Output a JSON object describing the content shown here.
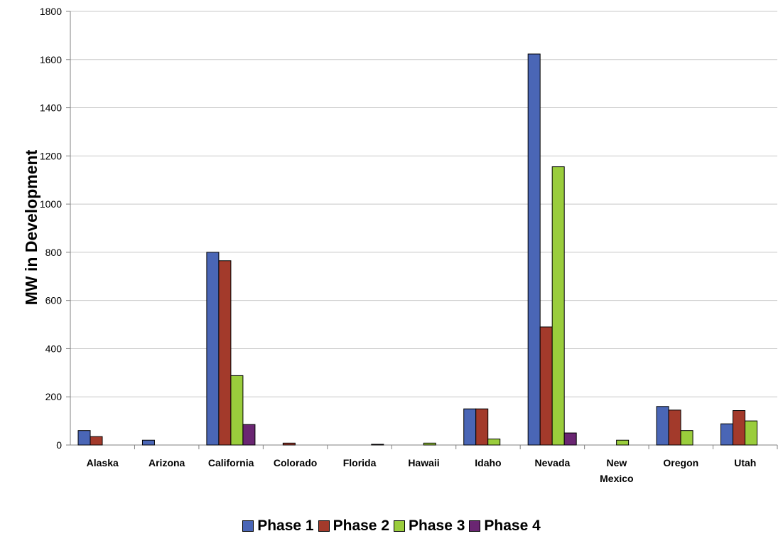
{
  "chart_data": {
    "type": "bar",
    "title": "",
    "xlabel": "",
    "ylabel": "MW in Development",
    "ylim": [
      0,
      1800
    ],
    "yticks": [
      "0",
      "200",
      "400",
      "600",
      "800",
      "1000",
      "1200",
      "1400",
      "1600",
      "1800"
    ],
    "grid": true,
    "legend_position": "bottom",
    "categories": [
      [
        "Alaska"
      ],
      [
        "Arizona"
      ],
      [
        "California"
      ],
      [
        "Colorado"
      ],
      [
        "Florida"
      ],
      [
        "Hawaii"
      ],
      [
        "Idaho"
      ],
      [
        "Nevada"
      ],
      [
        "New",
        "Mexico"
      ],
      [
        "Oregon"
      ],
      [
        "Utah"
      ]
    ],
    "series": [
      {
        "name": "Phase 1",
        "color": "#4a66b6",
        "values": [
          60,
          20,
          800,
          0,
          0,
          0,
          150,
          1623,
          0,
          160,
          88
        ]
      },
      {
        "name": "Phase 2",
        "color": "#a33a2b",
        "values": [
          35,
          0,
          765,
          8,
          0,
          0,
          150,
          490,
          0,
          145,
          143
        ]
      },
      {
        "name": "Phase 3",
        "color": "#9acd3c",
        "values": [
          0,
          0,
          288,
          0,
          0,
          8,
          25,
          1155,
          20,
          60,
          100
        ]
      },
      {
        "name": "Phase 4",
        "color": "#6a2672",
        "values": [
          0,
          0,
          85,
          0,
          3,
          0,
          0,
          50,
          0,
          0,
          0
        ]
      }
    ]
  }
}
